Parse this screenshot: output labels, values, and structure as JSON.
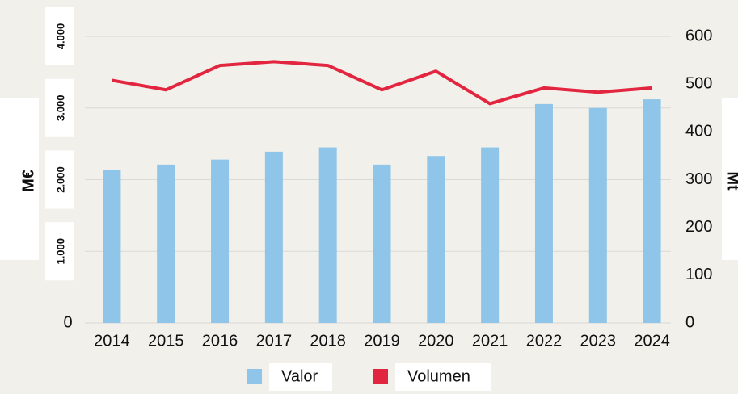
{
  "chart_data": {
    "type": "bar_line",
    "categories": [
      "2014",
      "2015",
      "2016",
      "2017",
      "2018",
      "2019",
      "2020",
      "2021",
      "2022",
      "2023",
      "2024"
    ],
    "series": [
      {
        "name": "Valor",
        "color": "#8ec5e8",
        "type": "bar",
        "axis": "y",
        "values": [
          2140,
          2210,
          2280,
          2390,
          2450,
          2210,
          2330,
          2450,
          3055,
          3000,
          3120
        ]
      },
      {
        "name": "Volumen",
        "color": "#e3263f",
        "type": "line",
        "axis": "y2",
        "values": [
          508,
          488,
          539,
          547,
          539,
          488,
          527,
          459,
          492,
          483,
          492
        ]
      }
    ],
    "ylabel": "M€",
    "y2label": "Mt",
    "ylim": [
      0,
      4000
    ],
    "yticks": [
      0,
      {
        "value": 1000,
        "label": "1.000"
      },
      {
        "value": 2000,
        "label": "2.000"
      },
      {
        "value": 3000,
        "label": "3.000"
      },
      {
        "value": 4000,
        "label": "4.000"
      }
    ],
    "y2lim": [
      0,
      600
    ],
    "y2ticks": [
      0,
      100,
      200,
      300,
      400,
      500,
      600
    ],
    "grid": true,
    "legend": "bottom"
  }
}
